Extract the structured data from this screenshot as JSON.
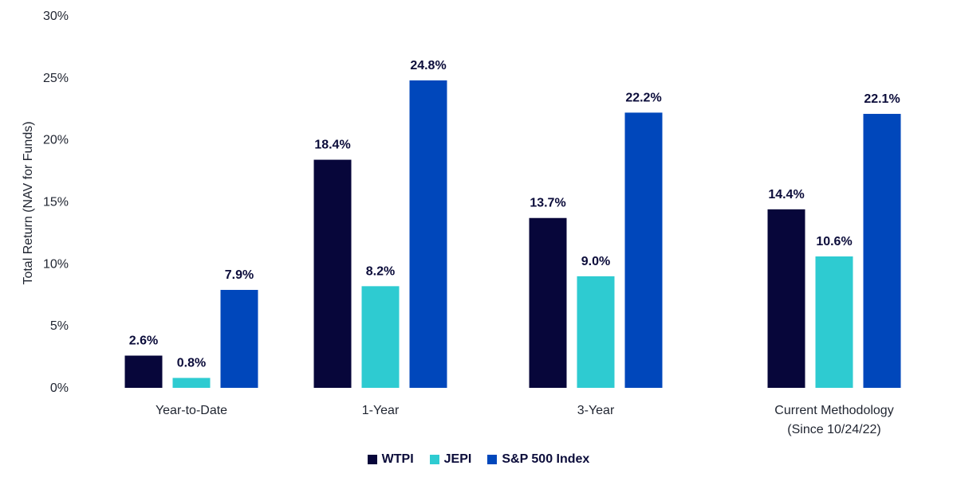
{
  "chart_data": {
    "type": "bar",
    "ylabel": "Total Return (NAV for Funds)",
    "ylim": [
      0,
      30
    ],
    "yticks": [
      "0%",
      "5%",
      "10%",
      "15%",
      "20%",
      "25%",
      "30%"
    ],
    "ytick_values": [
      0,
      5,
      10,
      15,
      20,
      25,
      30
    ],
    "categories": [
      {
        "line1": "Year-to-Date",
        "line2": ""
      },
      {
        "line1": "1-Year",
        "line2": ""
      },
      {
        "line1": "3-Year",
        "line2": ""
      },
      {
        "line1": "Current Methodology",
        "line2": "(Since 10/24/22)"
      }
    ],
    "series": [
      {
        "name": "WTPI",
        "color": "#07063a",
        "values": [
          2.6,
          18.4,
          13.7,
          14.4
        ],
        "labels": [
          "2.6%",
          "18.4%",
          "13.7%",
          "14.4%"
        ]
      },
      {
        "name": "JEPI",
        "color": "#2ecbd1",
        "values": [
          0.8,
          8.2,
          9.0,
          10.6
        ],
        "labels": [
          "0.8%",
          "8.2%",
          "9.0%",
          "10.6%"
        ]
      },
      {
        "name": "S&P 500 Index",
        "color": "#0047bb",
        "values": [
          7.9,
          24.8,
          22.2,
          22.1
        ],
        "labels": [
          "7.9%",
          "24.8%",
          "22.2%",
          "22.1%"
        ]
      }
    ],
    "legend_position": "bottom-center",
    "grid": false
  }
}
